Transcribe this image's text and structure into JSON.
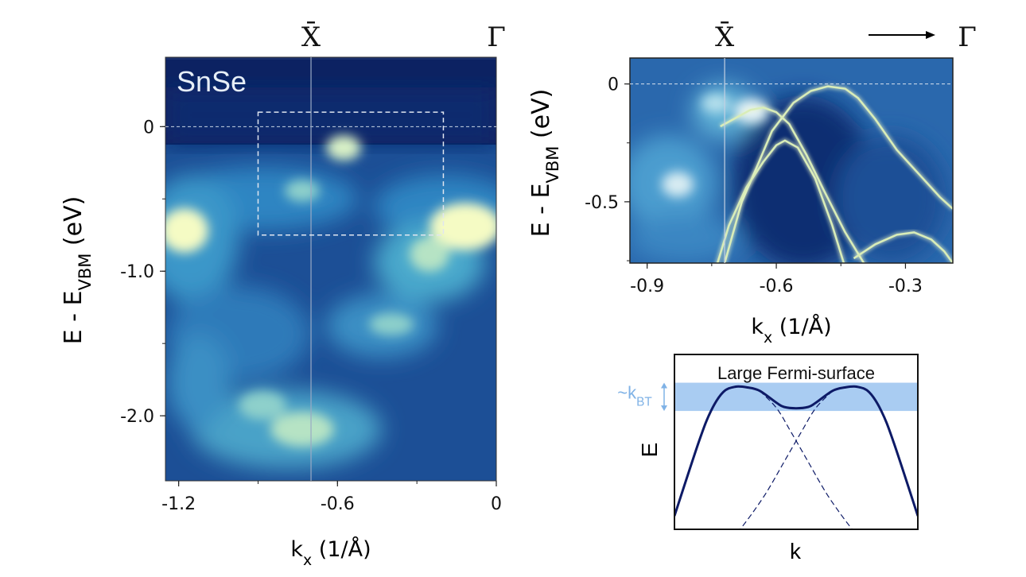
{
  "chart_data": [
    {
      "type": "heatmap",
      "title": "SnSe",
      "xlabel": "k_x (1/Å)",
      "ylabel": "E - E_VBM (eV)",
      "xlim": [
        -1.25,
        0.0
      ],
      "ylim": [
        -2.45,
        0.48
      ],
      "xticks": [
        "-1.2",
        "-0.6",
        "0"
      ],
      "xtick_values": [
        -1.2,
        -0.6,
        0
      ],
      "yticks": [
        "0",
        "-1.0",
        "-2.0"
      ],
      "ytick_values": [
        0,
        -1.0,
        -2.0
      ],
      "high_symmetry_points": [
        {
          "label": "X̄",
          "k": -0.7
        },
        {
          "label": "Γ",
          "k": 0.0
        }
      ],
      "inset_box": {
        "x": [
          -0.9,
          -0.2
        ],
        "y": [
          -0.75,
          0.1
        ]
      },
      "colormap": [
        "#0b1f5e",
        "#1a4d94",
        "#2f7fbd",
        "#5fb8cf",
        "#b6e3c4",
        "#f5fbc4"
      ]
    },
    {
      "type": "heatmap",
      "xlabel": "k_x (1/Å)",
      "ylabel": "E - E_VBM (eV)",
      "xlim": [
        -0.94,
        -0.19
      ],
      "ylim": [
        -0.76,
        0.11
      ],
      "xticks": [
        "-0.9",
        "-0.6",
        "-0.3"
      ],
      "xtick_values": [
        -0.9,
        -0.6,
        -0.3
      ],
      "yticks": [
        "0",
        "-0.5"
      ],
      "ytick_values": [
        0,
        -0.5
      ],
      "high_symmetry_points": [
        {
          "label": "X̄",
          "k": -0.72
        },
        {
          "label": "Γ",
          "k": -0.19
        }
      ],
      "band_curves": [
        {
          "x": [
            -0.72,
            -0.68,
            -0.64,
            -0.61,
            -0.56,
            -0.52,
            -0.48,
            -0.44,
            -0.41,
            -0.37,
            -0.32,
            -0.27,
            -0.22,
            -0.19
          ],
          "y": [
            -0.76,
            -0.5,
            -0.33,
            -0.2,
            -0.08,
            -0.03,
            -0.01,
            -0.02,
            -0.06,
            -0.15,
            -0.28,
            -0.38,
            -0.48,
            -0.53
          ]
        },
        {
          "x": [
            -0.74,
            -0.71,
            -0.67,
            -0.63,
            -0.6,
            -0.58,
            -0.55,
            -0.51,
            -0.47,
            -0.44
          ],
          "y": [
            -0.78,
            -0.6,
            -0.44,
            -0.33,
            -0.26,
            -0.24,
            -0.27,
            -0.4,
            -0.6,
            -0.78
          ]
        },
        {
          "x": [
            -0.73,
            -0.7,
            -0.66,
            -0.63,
            -0.6,
            -0.57,
            -0.53,
            -0.49,
            -0.44,
            -0.39
          ],
          "y": [
            -0.18,
            -0.15,
            -0.11,
            -0.1,
            -0.12,
            -0.17,
            -0.3,
            -0.45,
            -0.63,
            -0.78
          ]
        },
        {
          "x": [
            -0.42,
            -0.37,
            -0.32,
            -0.28,
            -0.24,
            -0.21,
            -0.19
          ],
          "y": [
            -0.74,
            -0.68,
            -0.64,
            -0.63,
            -0.66,
            -0.71,
            -0.76
          ]
        }
      ],
      "colormap": [
        "#0b1f5e",
        "#1a4d94",
        "#2f7fbd",
        "#5fb8cf",
        "#b6e3c4",
        "#f5fbc4"
      ]
    },
    {
      "type": "line",
      "title": "Large Fermi-surface",
      "xlabel": "k",
      "ylabel": "E",
      "annotation": "~k_BT",
      "band_color": "#0d1a66",
      "band_width_color": "#a9ccf2",
      "series": [
        {
          "x": [
            0.0,
            0.1,
            0.15,
            0.2,
            0.25,
            0.3,
            0.35,
            0.42,
            0.45,
            0.5,
            0.55,
            0.58,
            0.65,
            0.7,
            0.75,
            0.8,
            0.85,
            0.9,
            1.0
          ],
          "y": [
            0.0,
            0.55,
            0.78,
            0.92,
            0.96,
            0.955,
            0.93,
            0.84,
            0.81,
            0.8,
            0.81,
            0.84,
            0.93,
            0.955,
            0.96,
            0.92,
            0.78,
            0.55,
            0.0
          ]
        },
        {
          "x": [
            0.35,
            0.42,
            0.48,
            0.55,
            0.62,
            0.68,
            0.73
          ],
          "y": [
            0.93,
            0.8,
            0.62,
            0.4,
            0.18,
            0.02,
            -0.1
          ]
        },
        {
          "x": [
            0.65,
            0.58,
            0.52,
            0.45,
            0.38,
            0.32,
            0.27
          ],
          "y": [
            0.93,
            0.8,
            0.62,
            0.4,
            0.18,
            0.02,
            -0.1
          ]
        }
      ],
      "ylim": [
        -0.1,
        1.2
      ],
      "xlim": [
        0,
        1
      ],
      "band_range": [
        0.78,
        0.99
      ]
    }
  ]
}
